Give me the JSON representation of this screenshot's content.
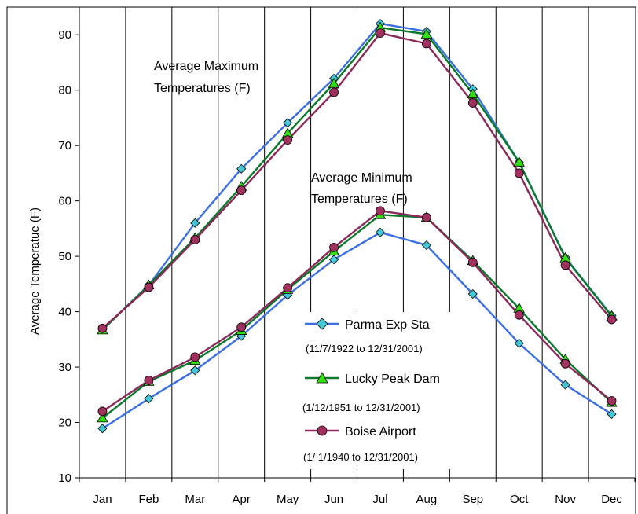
{
  "chart_data": {
    "type": "line",
    "ylabel": "Average Temperatue (F)",
    "xlabel": "",
    "categories": [
      "Jan",
      "Feb",
      "Mar",
      "Apr",
      "May",
      "Jun",
      "Jul",
      "Aug",
      "Sep",
      "Oct",
      "Nov",
      "Dec"
    ],
    "ylim": [
      10,
      95
    ],
    "yticks": [
      10,
      20,
      30,
      40,
      50,
      60,
      70,
      80,
      90
    ],
    "grid": "vertical",
    "annotations": [
      {
        "line1": "Average Maximum",
        "line2": "Temperatures (F)"
      },
      {
        "line1": "Average Minimum",
        "line2": "Temperatures (F)"
      }
    ],
    "legend": {
      "placement": "center-bottom",
      "entries": [
        {
          "name": "Parma Exp Sta",
          "period": "(11/7/1922 to 12/31/2001)",
          "marker": "diamond",
          "line_color": "#3c6fe0",
          "marker_color": "#44c8d8"
        },
        {
          "name": "Lucky Peak Dam",
          "period": "(1/12/1951 to 12/31/2001)",
          "marker": "triangle",
          "line_color": "#0a7a2a",
          "marker_color": "#33dd11"
        },
        {
          "name": "Boise Airport",
          "period": "(1/ 1/1940 to 12/31/2001)",
          "marker": "circle",
          "line_color": "#8a2a5a",
          "marker_color": "#a0305e"
        }
      ]
    },
    "series": [
      {
        "station": "Parma Exp Sta",
        "kind": "max",
        "values": [
          36.8,
          44.8,
          56.0,
          65.8,
          74.1,
          82.1,
          92.0,
          90.6,
          80.2,
          67.0,
          49.8,
          39.3
        ]
      },
      {
        "station": "Lucky Peak Dam",
        "kind": "max",
        "values": [
          36.7,
          44.8,
          53.3,
          62.6,
          72.2,
          81.2,
          91.3,
          90.1,
          79.3,
          67.0,
          49.7,
          39.2
        ]
      },
      {
        "station": "Boise Airport",
        "kind": "max",
        "values": [
          37.0,
          44.4,
          53.0,
          61.9,
          71.0,
          79.6,
          90.3,
          88.4,
          77.7,
          65.0,
          48.4,
          38.6
        ]
      },
      {
        "station": "Parma Exp Sta",
        "kind": "min",
        "values": [
          18.9,
          24.3,
          29.4,
          35.6,
          43.0,
          49.4,
          54.3,
          52.0,
          43.2,
          34.3,
          26.8,
          21.5
        ]
      },
      {
        "station": "Lucky Peak Dam",
        "kind": "min",
        "values": [
          20.8,
          27.4,
          31.2,
          36.6,
          44.0,
          50.9,
          57.5,
          57.0,
          49.2,
          40.6,
          31.4,
          23.6
        ]
      },
      {
        "station": "Boise Airport",
        "kind": "min",
        "values": [
          22.0,
          27.6,
          31.8,
          37.2,
          44.3,
          51.6,
          58.2,
          57.0,
          48.9,
          39.4,
          30.6,
          23.9
        ]
      }
    ]
  }
}
